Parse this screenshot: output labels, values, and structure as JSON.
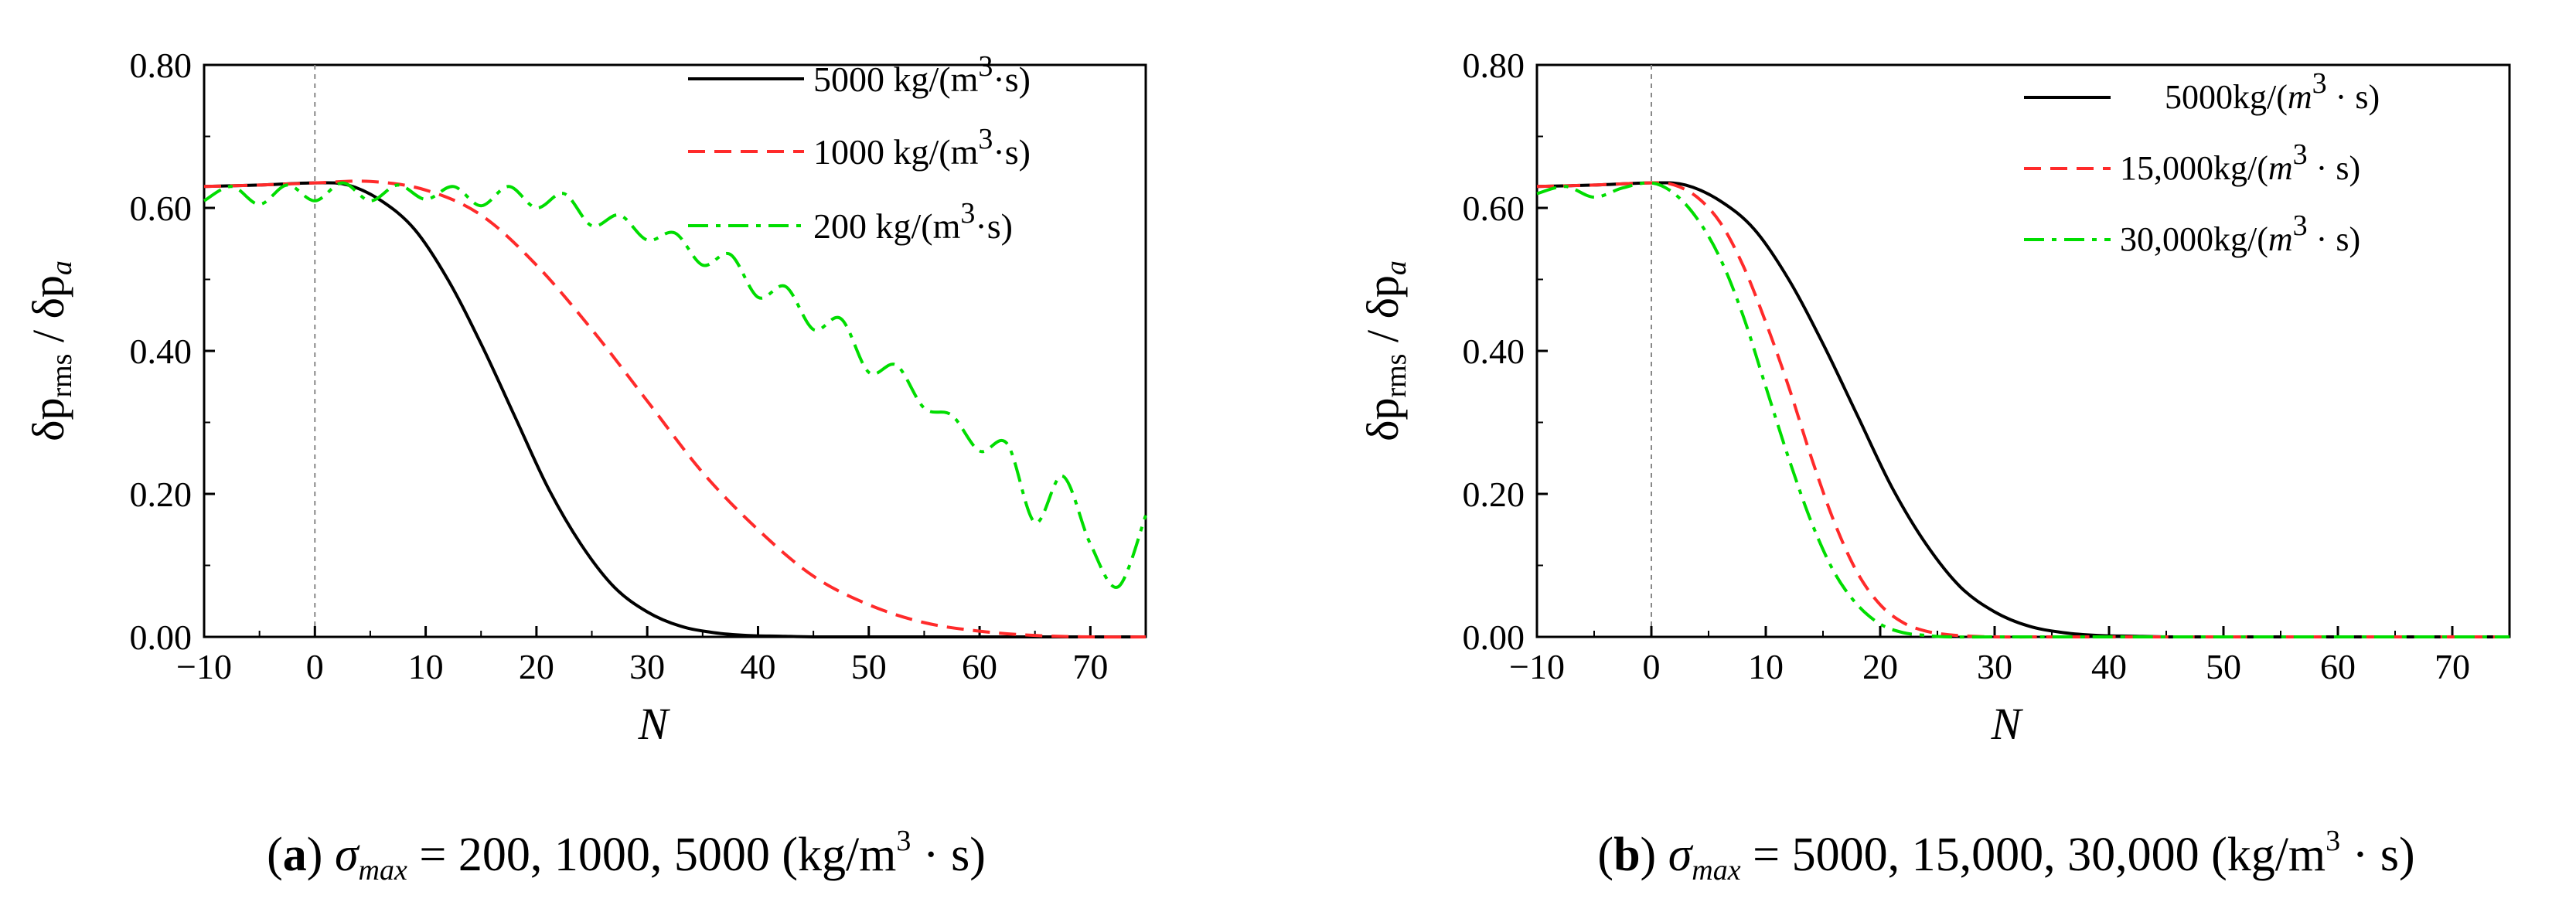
{
  "chart_data": [
    {
      "type": "line",
      "panel": "a",
      "xlabel": "N",
      "ylabel_main": "δp",
      "ylabel_sub1": "rms",
      "ylabel_sep": " / δp",
      "ylabel_sub2": "a",
      "xlim": [
        -10,
        75
      ],
      "ylim": [
        0,
        0.8
      ],
      "xticks": [
        "−10",
        "0",
        "10",
        "20",
        "30",
        "40",
        "50",
        "60",
        "70"
      ],
      "yticks": [
        "0.00",
        "0.20",
        "0.40",
        "0.60",
        "0.80"
      ],
      "legend_position": "top-right",
      "series": [
        {
          "name": "5000 kg/(m3·s)",
          "label_main": "5000 kg/(m",
          "label_sup": "3",
          "label_tail": "·s)",
          "color": "#000000",
          "style": "solid",
          "x": [
            -10,
            -5,
            0,
            3,
            6,
            9,
            12,
            15,
            18,
            21,
            24,
            27,
            30,
            33,
            36,
            39,
            42,
            45,
            50,
            55,
            60,
            65,
            70,
            75
          ],
          "y": [
            0.63,
            0.632,
            0.635,
            0.632,
            0.61,
            0.57,
            0.5,
            0.41,
            0.31,
            0.21,
            0.13,
            0.07,
            0.035,
            0.015,
            0.006,
            0.002,
            0.001,
            0,
            0,
            0,
            0,
            0,
            0,
            0
          ]
        },
        {
          "name": "1000 kg/(m3·s)",
          "label_main": "1000 kg/(m",
          "label_sup": "3",
          "label_tail": "·s)",
          "color": "#ff2a2a",
          "style": "dashed",
          "x": [
            -10,
            -5,
            0,
            5,
            10,
            15,
            20,
            25,
            30,
            35,
            40,
            45,
            50,
            55,
            60,
            65,
            70,
            75
          ],
          "y": [
            0.63,
            0.632,
            0.635,
            0.637,
            0.625,
            0.59,
            0.52,
            0.43,
            0.33,
            0.23,
            0.15,
            0.085,
            0.045,
            0.02,
            0.008,
            0.002,
            0,
            0
          ]
        },
        {
          "name": "200 kg/(m3·s)",
          "label_main": "200 kg/(m",
          "label_sup": "3",
          "label_tail": "·s)",
          "color": "#00dd00",
          "style": "dashdot",
          "x": [
            -10,
            -7.5,
            -5,
            -2.5,
            0,
            2.5,
            5,
            7.5,
            10,
            12.5,
            15,
            17.5,
            20,
            22.5,
            25,
            27.5,
            30,
            32.5,
            35,
            37.5,
            40,
            42.5,
            45,
            47.5,
            50,
            52.5,
            55,
            57.5,
            60,
            62.5,
            65,
            67.5,
            70,
            72.5,
            75
          ],
          "y": [
            0.61,
            0.63,
            0.605,
            0.632,
            0.61,
            0.635,
            0.61,
            0.632,
            0.612,
            0.63,
            0.603,
            0.63,
            0.6,
            0.62,
            0.575,
            0.59,
            0.555,
            0.565,
            0.52,
            0.535,
            0.475,
            0.49,
            0.43,
            0.445,
            0.37,
            0.38,
            0.32,
            0.31,
            0.26,
            0.27,
            0.16,
            0.225,
            0.13,
            0.07,
            0.17
          ]
        }
      ]
    },
    {
      "type": "line",
      "panel": "b",
      "xlabel": "N",
      "ylabel_main": "δp",
      "ylabel_sub1": "rms",
      "ylabel_sep": " / δp",
      "ylabel_sub2": "a",
      "xlim": [
        -10,
        75
      ],
      "ylim": [
        0,
        0.8
      ],
      "xticks": [
        "−10",
        "0",
        "10",
        "20",
        "30",
        "40",
        "50",
        "60",
        "70"
      ],
      "yticks": [
        "0.00",
        "0.20",
        "0.40",
        "0.60",
        "0.80"
      ],
      "legend_position": "top-right",
      "series": [
        {
          "name": "5000kg/(m3 · s)",
          "label_main": "5000kg/(",
          "label_m": "m",
          "label_sup": "3",
          "label_tail": " · s)",
          "color": "#000000",
          "style": "solid",
          "x": [
            -10,
            -5,
            0,
            3,
            6,
            9,
            12,
            15,
            18,
            21,
            24,
            27,
            30,
            33,
            36,
            39,
            42,
            45,
            50,
            55,
            60,
            65,
            70,
            75
          ],
          "y": [
            0.63,
            0.632,
            0.635,
            0.632,
            0.61,
            0.57,
            0.5,
            0.41,
            0.31,
            0.21,
            0.13,
            0.07,
            0.035,
            0.015,
            0.006,
            0.002,
            0.001,
            0,
            0,
            0,
            0,
            0,
            0,
            0
          ]
        },
        {
          "name": "15,000kg/(m3 · s)",
          "label_main": "15,000kg/(",
          "label_m": "m",
          "label_sup": "3",
          "label_tail": " · s)",
          "color": "#ff2a2a",
          "style": "dashed",
          "x": [
            -10,
            -5,
            0,
            2,
            4,
            6,
            8,
            10,
            12,
            14,
            16,
            18,
            20,
            22,
            24,
            26,
            28,
            30,
            35,
            40,
            75
          ],
          "y": [
            0.63,
            0.632,
            0.635,
            0.632,
            0.615,
            0.58,
            0.52,
            0.44,
            0.35,
            0.25,
            0.16,
            0.09,
            0.045,
            0.02,
            0.008,
            0.003,
            0.001,
            0,
            0,
            0,
            0
          ]
        },
        {
          "name": "30,000kg/(m3 · s)",
          "label_main": "30,000kg/(",
          "label_m": "m",
          "label_sup": "3",
          "label_tail": " · s)",
          "color": "#00dd00",
          "style": "dashdot",
          "x": [
            -10,
            -7.5,
            -5,
            -2.5,
            0,
            2,
            4,
            6,
            8,
            10,
            12,
            14,
            16,
            18,
            20,
            22,
            24,
            26,
            30,
            40,
            75
          ],
          "y": [
            0.62,
            0.63,
            0.615,
            0.628,
            0.635,
            0.62,
            0.585,
            0.53,
            0.45,
            0.35,
            0.25,
            0.16,
            0.09,
            0.045,
            0.018,
            0.006,
            0.002,
            0,
            0,
            0,
            0
          ]
        }
      ]
    }
  ],
  "captions": {
    "a": {
      "label": "a",
      "sigma": "σ",
      "sigma_sub": "max",
      "equals": " = ",
      "values": "200, 1000, 5000 (kg/m",
      "sup": "3",
      "tail": " · s)"
    },
    "b": {
      "label": "b",
      "sigma": "σ",
      "sigma_sub": "max",
      "equals": " = ",
      "values": "5000, 15,000, 30,000 (kg/m",
      "sup": "3",
      "tail": " · s)"
    }
  }
}
